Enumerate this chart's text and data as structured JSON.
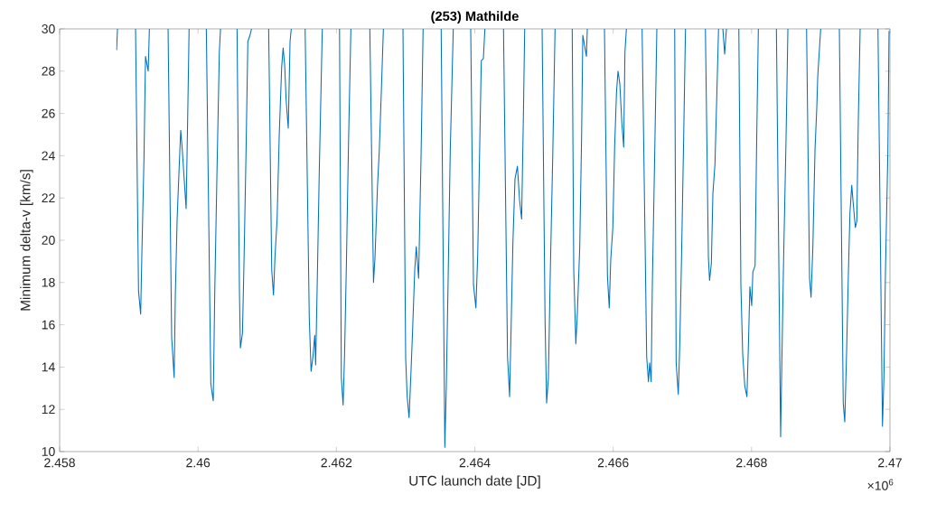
{
  "chart_data": {
    "type": "line",
    "title": "(253) Mathilde",
    "xlabel": "UTC launch date [JD]",
    "ylabel": "Minimum delta-v [km/s]",
    "annotations": [
      "×10$^{6}$"
    ],
    "color": "#0072bd",
    "xlim": [
      2.458,
      2.47
    ],
    "xticks": [
      2.458,
      2.46,
      2.462,
      2.464,
      2.466,
      2.468,
      2.47
    ],
    "ylim": [
      10,
      30
    ],
    "yticks": [
      10,
      12,
      14,
      16,
      18,
      20,
      22,
      24,
      26,
      28,
      30
    ],
    "x": [
      2.458823,
      2.458836,
      2.4589,
      2.459097,
      2.45914,
      2.459171,
      2.459188,
      2.459219,
      2.459241,
      2.45928,
      2.459297,
      2.45943,
      2.459567,
      2.459619,
      2.459655,
      2.459672,
      2.459698,
      2.459728,
      2.45975,
      2.459772,
      2.459828,
      2.459851,
      2.459871,
      2.46,
      2.46012,
      2.460185,
      2.46022,
      2.460242,
      2.460272,
      2.460308,
      2.460325,
      2.46045,
      2.460564,
      2.460599,
      2.460612,
      2.460642,
      2.460664,
      2.460694,
      2.46072,
      2.460751,
      2.460773,
      2.4609,
      2.461021,
      2.461065,
      2.461091,
      2.461112,
      2.461143,
      2.461174,
      2.461209,
      2.46123,
      2.461252,
      2.461274,
      2.461304,
      2.46133,
      2.461347,
      2.46145,
      2.461548,
      2.461608,
      2.461634,
      2.461661,
      2.461687,
      2.4617,
      2.461722,
      2.461752,
      2.461796,
      2.4619,
      2.462045,
      2.462071,
      2.462097,
      2.462118,
      2.462144,
      2.462175,
      2.462209,
      2.46235,
      2.462483,
      2.462536,
      2.462558,
      2.462593,
      2.462619,
      2.462653,
      2.462679,
      2.4628,
      2.462962,
      2.463001,
      2.463023,
      2.46305,
      2.463076,
      2.463102,
      2.463132,
      2.463154,
      2.463188,
      2.463223,
      2.463253,
      2.4634,
      2.463514,
      2.463567,
      2.463589,
      2.463615,
      2.463645,
      2.463689,
      2.4638,
      2.463941,
      2.463981,
      2.464016,
      2.464042,
      2.464068,
      2.464094,
      2.464124,
      2.464146,
      2.4643,
      2.464415,
      2.464473,
      2.464503,
      2.464525,
      2.464551,
      2.464581,
      2.464616,
      2.464647,
      2.464677,
      2.464703,
      2.464721,
      2.46485,
      2.464973,
      2.465016,
      2.465038,
      2.465064,
      2.46509,
      2.465126,
      2.46516,
      2.4653,
      2.465408,
      2.46543,
      2.46546,
      2.465482,
      2.465517,
      2.465544,
      2.465561,
      2.465613,
      2.465626,
      2.46575,
      2.465874,
      2.465917,
      2.465943,
      2.465965,
      2.465995,
      2.466021,
      2.466048,
      2.46607,
      2.466096,
      2.466126,
      2.466152,
      2.46617,
      2.466191,
      2.4663,
      2.466418,
      2.466484,
      2.46651,
      2.466527,
      2.466549,
      2.466566,
      2.466596,
      2.466631,
      2.46675,
      2.466889,
      2.46691,
      2.466941,
      2.466962,
      2.466988,
      2.467019,
      2.467045,
      2.4672,
      2.467333,
      2.467376,
      2.467393,
      2.467419,
      2.467441,
      2.467471,
      2.467502,
      2.467523,
      2.467555,
      2.467585,
      2.467611,
      2.467637,
      2.46772,
      2.467816,
      2.467846,
      2.467872,
      2.467902,
      2.467933,
      2.467954,
      2.467976,
      2.468002,
      2.468019,
      2.468051,
      2.468072,
      2.468098,
      2.46823,
      2.468359,
      2.46842,
      2.468437,
      2.468463,
      2.468499,
      2.468525,
      2.46865,
      2.468795,
      2.468838,
      2.46886,
      2.468886,
      2.468917,
      2.468943,
      2.468956,
      2.468978,
      2.468999,
      2.46913,
      2.469269,
      2.469325,
      2.469347,
      2.469374,
      2.4694,
      2.469422,
      2.469448,
      2.469465,
      2.4695,
      2.469521,
      2.469543,
      2.469569,
      2.4697,
      2.469827,
      2.469892,
      2.469913,
      2.469935,
      2.46997,
      2.469987
    ],
    "values": [
      29.0,
      30,
      null,
      30,
      17.6,
      16.5,
      19.3,
      23.9,
      28.7,
      28.0,
      30,
      null,
      30,
      15.4,
      13.5,
      17.4,
      21.0,
      23.5,
      25.2,
      24.3,
      21.5,
      25.9,
      30,
      null,
      30,
      13.2,
      12.4,
      17.6,
      22.9,
      28.9,
      30,
      null,
      30,
      17.5,
      14.9,
      15.6,
      18.9,
      24.2,
      29.4,
      29.7,
      30,
      null,
      30,
      18.6,
      17.4,
      19.2,
      21.0,
      25.0,
      28.2,
      29.1,
      28.3,
      26.6,
      25.3,
      29.4,
      30,
      null,
      30,
      16.3,
      13.8,
      14.5,
      15.5,
      14.1,
      17.8,
      23.2,
      30,
      null,
      30,
      13.5,
      12.2,
      14.6,
      18.8,
      24.6,
      30,
      null,
      30,
      18.0,
      19.2,
      22.5,
      24.2,
      27.4,
      30,
      null,
      30,
      14.4,
      12.6,
      11.6,
      13.6,
      15.8,
      18.6,
      19.7,
      18.2,
      23.9,
      30,
      null,
      30,
      10.2,
      13.2,
      18.2,
      24.2,
      30,
      null,
      30,
      17.9,
      16.8,
      19.3,
      23.9,
      28.5,
      28.6,
      30,
      null,
      30,
      14.5,
      12.6,
      15.9,
      19.9,
      22.9,
      23.5,
      21.9,
      21.0,
      26.0,
      30,
      null,
      30,
      16.1,
      12.3,
      13.5,
      18.3,
      23.9,
      30,
      null,
      30,
      18.6,
      15.1,
      16.5,
      19.7,
      25.0,
      29.7,
      28.7,
      30,
      null,
      30,
      18.3,
      16.8,
      19.1,
      20.6,
      24.4,
      27.0,
      28.0,
      27.4,
      25.5,
      24.4,
      28.9,
      30,
      null,
      30,
      14.5,
      13.3,
      14.2,
      13.3,
      17.9,
      23.3,
      30,
      null,
      30,
      14.2,
      12.7,
      15.0,
      19.2,
      24.9,
      30,
      null,
      30,
      19.2,
      18.1,
      18.9,
      22.2,
      23.6,
      27.4,
      30,
      null,
      30,
      28.8,
      30,
      null,
      30,
      17.8,
      14.6,
      13.1,
      12.6,
      15.0,
      17.8,
      16.9,
      18.5,
      18.8,
      24.3,
      30,
      null,
      30,
      10.7,
      14.1,
      19.1,
      24.9,
      30,
      null,
      30,
      18.2,
      17.3,
      19.7,
      24.3,
      26.3,
      27.7,
      28.9,
      30,
      null,
      30,
      12.3,
      11.4,
      14.8,
      18.5,
      21.3,
      22.6,
      21.9,
      20.6,
      20.9,
      25.7,
      30,
      null,
      30,
      11.2,
      13.5,
      18.5,
      24.2,
      29.9
    ]
  }
}
